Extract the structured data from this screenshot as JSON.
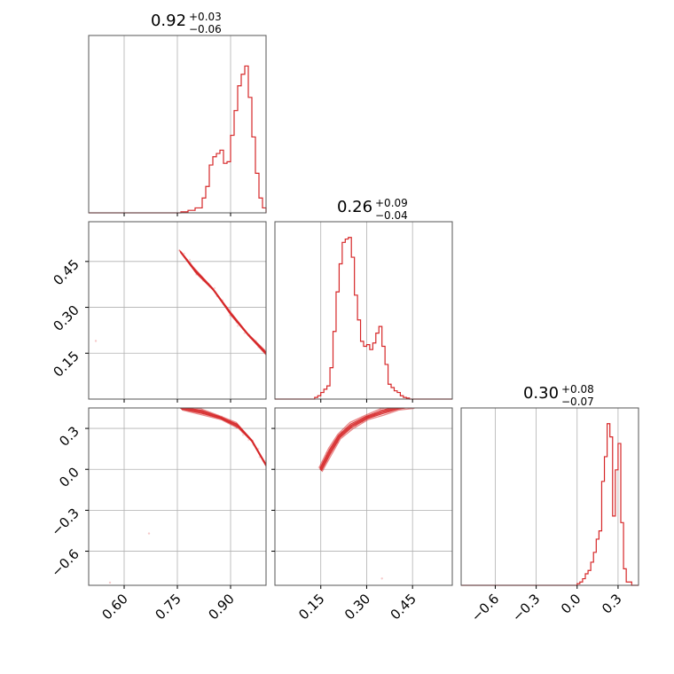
{
  "chart_data": {
    "type": "corner",
    "parameters": [
      {
        "title_value": "0.92",
        "title_plus": "+0.03",
        "title_minus": "−0.06",
        "range": [
          0.5,
          1.0
        ],
        "ticks": [
          0.6,
          0.75,
          0.9
        ],
        "tick_labels": [
          "0.60",
          "0.75",
          "0.90"
        ],
        "hist": [
          [
            0.76,
            0.006
          ],
          [
            0.78,
            0.015
          ],
          [
            0.8,
            0.03
          ],
          [
            0.82,
            0.09
          ],
          [
            0.83,
            0.16
          ],
          [
            0.84,
            0.29
          ],
          [
            0.85,
            0.34
          ],
          [
            0.86,
            0.36
          ],
          [
            0.87,
            0.38
          ],
          [
            0.88,
            0.3
          ],
          [
            0.89,
            0.31
          ],
          [
            0.9,
            0.47
          ],
          [
            0.91,
            0.62
          ],
          [
            0.92,
            0.77
          ],
          [
            0.93,
            0.84
          ],
          [
            0.94,
            0.89
          ],
          [
            0.95,
            0.7
          ],
          [
            0.96,
            0.46
          ],
          [
            0.97,
            0.24
          ],
          [
            0.98,
            0.09
          ],
          [
            0.99,
            0.03
          ],
          [
            1.0,
            0.0
          ]
        ]
      },
      {
        "title_value": "0.26",
        "title_plus": "+0.09",
        "title_minus": "−0.04",
        "range": [
          0.0,
          0.58
        ],
        "ticks": [
          0.15,
          0.3,
          0.45
        ],
        "tick_labels": [
          "0.15",
          "0.30",
          "0.45"
        ],
        "hist": [
          [
            0.13,
            0.01
          ],
          [
            0.14,
            0.02
          ],
          [
            0.15,
            0.04
          ],
          [
            0.16,
            0.06
          ],
          [
            0.17,
            0.08
          ],
          [
            0.18,
            0.19
          ],
          [
            0.19,
            0.41
          ],
          [
            0.2,
            0.65
          ],
          [
            0.21,
            0.82
          ],
          [
            0.22,
            0.95
          ],
          [
            0.23,
            0.97
          ],
          [
            0.24,
            0.98
          ],
          [
            0.25,
            0.86
          ],
          [
            0.26,
            0.63
          ],
          [
            0.27,
            0.48
          ],
          [
            0.28,
            0.35
          ],
          [
            0.29,
            0.32
          ],
          [
            0.3,
            0.33
          ],
          [
            0.31,
            0.3
          ],
          [
            0.32,
            0.34
          ],
          [
            0.33,
            0.4
          ],
          [
            0.34,
            0.44
          ],
          [
            0.35,
            0.32
          ],
          [
            0.36,
            0.21
          ],
          [
            0.37,
            0.09
          ],
          [
            0.38,
            0.07
          ],
          [
            0.39,
            0.05
          ],
          [
            0.4,
            0.04
          ],
          [
            0.41,
            0.02
          ],
          [
            0.42,
            0.01
          ],
          [
            0.43,
            0.006
          ],
          [
            0.44,
            0.0
          ]
        ]
      },
      {
        "title_value": "0.30",
        "title_plus": "+0.08",
        "title_minus": "−0.07",
        "range": [
          -0.85,
          0.45
        ],
        "ticks": [
          -0.6,
          -0.3,
          0.0,
          0.3
        ],
        "tick_labels": [
          "−0.6",
          "−0.3",
          "0.0",
          "0.3"
        ],
        "hist": [
          [
            0.0,
            0.01
          ],
          [
            0.02,
            0.02
          ],
          [
            0.04,
            0.04
          ],
          [
            0.06,
            0.07
          ],
          [
            0.08,
            0.09
          ],
          [
            0.1,
            0.14
          ],
          [
            0.12,
            0.2
          ],
          [
            0.14,
            0.28
          ],
          [
            0.16,
            0.33
          ],
          [
            0.18,
            0.63
          ],
          [
            0.2,
            0.78
          ],
          [
            0.22,
            0.98
          ],
          [
            0.24,
            0.9
          ],
          [
            0.26,
            0.42
          ],
          [
            0.28,
            0.7
          ],
          [
            0.3,
            0.86
          ],
          [
            0.32,
            0.38
          ],
          [
            0.34,
            0.1
          ],
          [
            0.36,
            0.02
          ],
          [
            0.4,
            0.0
          ]
        ]
      }
    ],
    "pairs": [
      {
        "row": 1,
        "col": 0,
        "y_ticks": [
          0.15,
          0.3,
          0.45
        ],
        "y_tick_labels": [
          "0.15",
          "0.30",
          "0.45"
        ],
        "ridge": [
          [
            0.76,
            0.48
          ],
          [
            0.8,
            0.42
          ],
          [
            0.85,
            0.36
          ],
          [
            0.9,
            0.28
          ],
          [
            0.95,
            0.21
          ],
          [
            1.0,
            0.15
          ]
        ],
        "stray_points": [
          [
            0.52,
            0.19
          ]
        ]
      },
      {
        "row": 2,
        "col": 0,
        "y_ticks": [
          -0.6,
          -0.3,
          0.0,
          0.3
        ],
        "y_tick_labels": [
          "−0.6",
          "−0.3",
          "0.0",
          "0.3"
        ],
        "ridge": [
          [
            0.76,
            0.45
          ],
          [
            0.82,
            0.42
          ],
          [
            0.87,
            0.38
          ],
          [
            0.92,
            0.32
          ],
          [
            0.96,
            0.21
          ],
          [
            1.0,
            0.03
          ]
        ],
        "stray_points": [
          [
            0.67,
            -0.47
          ],
          [
            0.56,
            -0.83
          ]
        ]
      },
      {
        "row": 2,
        "col": 1,
        "y_ticks": [
          -0.6,
          -0.3,
          0.0,
          0.3
        ],
        "y_tick_labels": [
          "−0.6",
          "−0.3",
          "0.0",
          "0.3"
        ],
        "ridge": [
          [
            0.15,
            0.0
          ],
          [
            0.18,
            0.13
          ],
          [
            0.21,
            0.24
          ],
          [
            0.25,
            0.32
          ],
          [
            0.3,
            0.38
          ],
          [
            0.35,
            0.42
          ],
          [
            0.4,
            0.45
          ],
          [
            0.45,
            0.47
          ]
        ],
        "stray_points": [
          [
            0.35,
            -0.8
          ]
        ]
      }
    ],
    "colors": {
      "line": "#d62728",
      "grid": "#b0b0b0",
      "frame": "#555555"
    },
    "grid": true
  }
}
